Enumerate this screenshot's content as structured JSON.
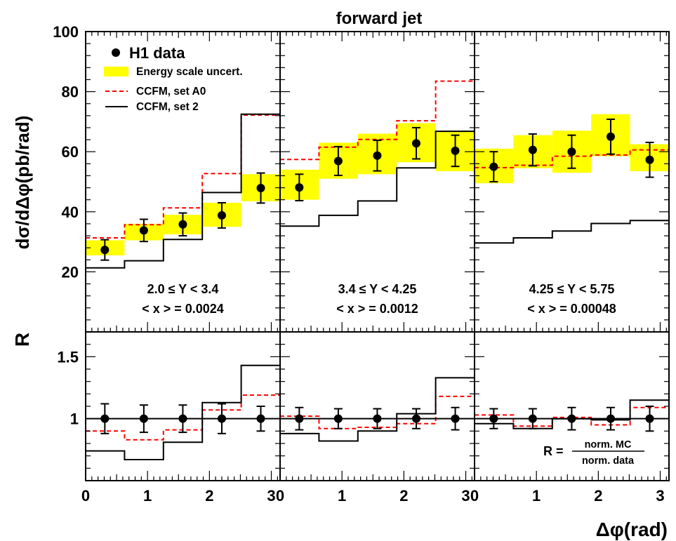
{
  "chart_data": {
    "type": "line",
    "title": "forward jet",
    "xlabel": "Δφ(rad)",
    "ylabel_top": "dσ/dΔφ(pb/rad)",
    "ylabel_bottom": "R",
    "ylim_top": [
      0,
      100
    ],
    "ylim_bottom": [
      0.5,
      1.7
    ],
    "xlim": [
      0,
      3.1416
    ],
    "yticks_top": [
      20,
      40,
      60,
      80,
      100
    ],
    "yticks_bottom": [
      1,
      1.5
    ],
    "xticks": [
      0,
      1,
      2,
      3
    ],
    "legend": {
      "placement": "top-left",
      "data": "H1 data",
      "band": "Energy scale uncert.",
      "a0": "CCFM, set A0",
      "set2": "CCFM, set 2"
    },
    "ratio_def": {
      "prefix": "R =",
      "num": "norm. MC",
      "den": "norm. data"
    },
    "bins": [
      0,
      0.6283,
      1.2566,
      1.885,
      2.5133,
      3.1416
    ],
    "centers": [
      0.31,
      0.94,
      1.57,
      2.2,
      2.83
    ],
    "colors": {
      "band": "#ffff00",
      "a0": "#ff0000",
      "set2": "#000000",
      "data": "#000000"
    },
    "panels": [
      {
        "cut": "2.0 ≤ Y < 3.4",
        "xmean": "< x > = 0.0024",
        "data": [
          27.3,
          33.8,
          35.8,
          38.8,
          47.9
        ],
        "err": [
          3.4,
          3.7,
          3.8,
          4.2,
          5.0
        ],
        "band": [
          [
            25.5,
            30.5
          ],
          [
            30.5,
            36.0
          ],
          [
            32.5,
            39.0
          ],
          [
            35.0,
            43.0
          ],
          [
            43.5,
            52.5
          ]
        ],
        "a0": [
          31.3,
          35.7,
          41.3,
          52.7,
          72.2
        ],
        "set2": [
          21.3,
          23.7,
          30.8,
          46.4,
          72.5
        ],
        "ratio": {
          "data_err": [
            0.12,
            0.11,
            0.11,
            0.12,
            0.1
          ],
          "a0": [
            0.9,
            0.83,
            0.91,
            1.07,
            1.19
          ],
          "set2": [
            0.74,
            0.67,
            0.81,
            1.13,
            1.43
          ]
        }
      },
      {
        "cut": "3.4 ≤ Y < 4.25",
        "xmean": "< x > = 0.0012",
        "data": [
          48.1,
          56.9,
          58.7,
          62.8,
          60.3
        ],
        "err": [
          4.4,
          4.8,
          5.1,
          5.2,
          5.2
        ],
        "band": [
          [
            44.0,
            54.0
          ],
          [
            51.0,
            63.0
          ],
          [
            52.5,
            66.0
          ],
          [
            56.5,
            69.5
          ],
          [
            53.5,
            67.0
          ]
        ],
        "a0": [
          57.4,
          61.5,
          64.1,
          70.3,
          83.5
        ],
        "set2": [
          35.2,
          38.8,
          43.6,
          54.6,
          66.8
        ],
        "ratio": {
          "data_err": [
            0.09,
            0.08,
            0.08,
            0.08,
            0.09
          ],
          "a0": [
            1.02,
            0.92,
            0.93,
            0.96,
            1.18
          ],
          "set2": [
            0.88,
            0.82,
            0.9,
            1.04,
            1.33
          ]
        }
      },
      {
        "cut": "4.25 ≤ Y < 5.75",
        "xmean": "< x > = 0.00048",
        "data": [
          55.0,
          60.6,
          60.0,
          65.0,
          57.3
        ],
        "err": [
          5.0,
          5.3,
          5.5,
          5.8,
          5.8
        ],
        "band": [
          [
            49.5,
            61.0
          ],
          [
            54.5,
            65.5
          ],
          [
            53.0,
            67.0
          ],
          [
            58.5,
            72.5
          ],
          [
            53.5,
            62.5
          ]
        ],
        "a0": [
          54.7,
          55.5,
          58.5,
          58.9,
          60.6
        ],
        "set2": [
          29.6,
          31.3,
          33.6,
          36.1,
          37.1
        ],
        "ratio": {
          "data_err": [
            0.08,
            0.08,
            0.09,
            0.09,
            0.1
          ],
          "a0": [
            1.03,
            0.94,
            1.01,
            0.95,
            1.09
          ],
          "set2": [
            0.96,
            0.92,
            1.0,
            0.99,
            1.15
          ]
        }
      }
    ]
  }
}
